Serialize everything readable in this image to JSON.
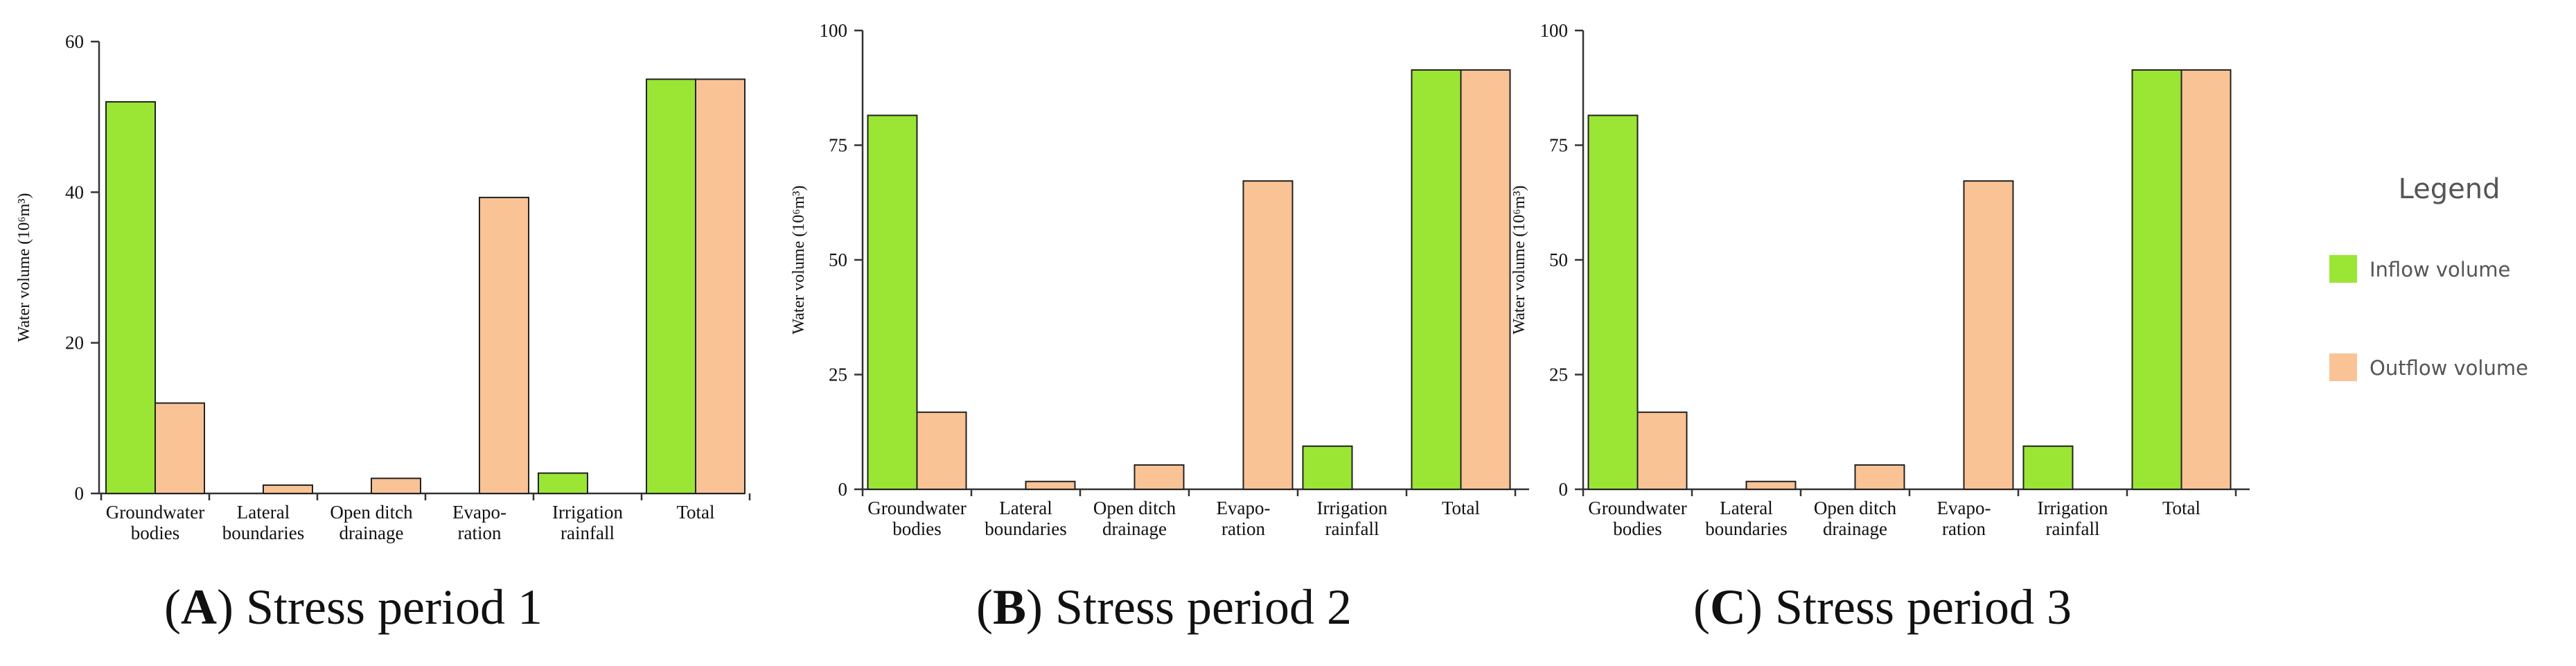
{
  "colors": {
    "inflow": "#9be535",
    "outflow": "#f9c396",
    "axis": "#333333",
    "text": "#111111",
    "legend_text": "#555555"
  },
  "legend": {
    "title": "Legend",
    "items": [
      {
        "label": "Inflow volume",
        "color": "#9be535"
      },
      {
        "label": "Outflow volume",
        "color": "#f9c396"
      }
    ]
  },
  "chart_data": [
    {
      "type": "bar",
      "caption_letter": "A",
      "caption_rest": ") Stress period 1",
      "ylabel": "Water volume (10⁶m³)",
      "ylim": [
        0,
        60
      ],
      "yticks": [
        0,
        20,
        40,
        60
      ],
      "categories": [
        [
          "Groundwater",
          "bodies"
        ],
        [
          "Lateral",
          "boundaries"
        ],
        [
          "Open ditch",
          "drainage"
        ],
        [
          "Evapo-",
          "ration"
        ],
        [
          "Irrigation",
          "rainfall"
        ],
        [
          "Total"
        ]
      ],
      "series": [
        {
          "name": "Inflow volume",
          "values": [
            52,
            0,
            0,
            0,
            2.7,
            55
          ]
        },
        {
          "name": "Outflow volume",
          "values": [
            12,
            1.1,
            2,
            39.3,
            0,
            55
          ]
        }
      ]
    },
    {
      "type": "bar",
      "caption_letter": "B",
      "caption_rest": ") Stress period 2",
      "ylabel": "Water volume (10⁶m³)",
      "ylim": [
        0,
        100
      ],
      "yticks": [
        0,
        25,
        50,
        75,
        100
      ],
      "categories": [
        [
          "Groundwater",
          "bodies"
        ],
        [
          "Lateral",
          "boundaries"
        ],
        [
          "Open ditch",
          "drainage"
        ],
        [
          "Evapo-",
          "ration"
        ],
        [
          "Irrigation",
          "rainfall"
        ],
        [
          "Total"
        ]
      ],
      "series": [
        {
          "name": "Inflow volume",
          "values": [
            81.5,
            0,
            0,
            0,
            9.4,
            91.4
          ]
        },
        {
          "name": "Outflow volume",
          "values": [
            16.8,
            1.7,
            5.3,
            67.2,
            0,
            91.4
          ]
        }
      ]
    },
    {
      "type": "bar",
      "caption_letter": "C",
      "caption_rest": ") Stress period 3",
      "ylabel": "Water volume (10⁶m³)",
      "ylim": [
        0,
        100
      ],
      "yticks": [
        0,
        25,
        50,
        75,
        100
      ],
      "categories": [
        [
          "Groundwater",
          "bodies"
        ],
        [
          "Lateral",
          "boundaries"
        ],
        [
          "Open ditch",
          "drainage"
        ],
        [
          "Evapo-",
          "ration"
        ],
        [
          "Irrigation",
          "rainfall"
        ],
        [
          "Total"
        ]
      ],
      "series": [
        {
          "name": "Inflow volume",
          "values": [
            81.5,
            0,
            0,
            0,
            9.4,
            91.4
          ]
        },
        {
          "name": "Outflow volume",
          "values": [
            16.8,
            1.7,
            5.3,
            67.2,
            0,
            91.4
          ]
        }
      ]
    }
  ]
}
